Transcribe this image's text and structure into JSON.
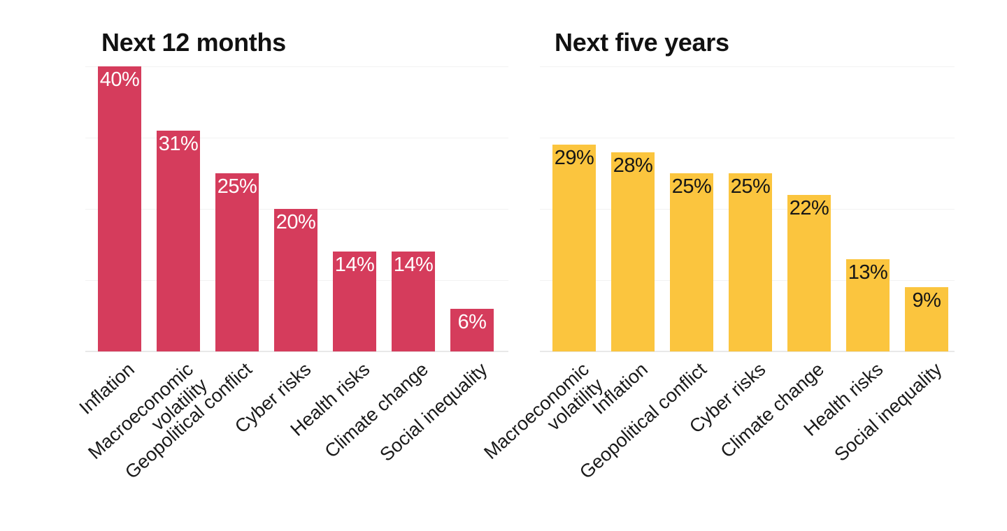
{
  "page": {
    "background": "#ffffff"
  },
  "style": {
    "grid_color": "#f2f2f2",
    "baseline_color": "#e8e8e8",
    "title_color": "#111111",
    "axis_label_color": "#1a1a1a"
  },
  "chart_data": [
    {
      "type": "bar",
      "title": "Next 12 months",
      "categories": [
        "Inflation",
        "Macroeconomic\nvolatility",
        "Geopolitical conflict",
        "Cyber risks",
        "Health risks",
        "Climate change",
        "Social inequality"
      ],
      "values": [
        40,
        31,
        25,
        20,
        14,
        14,
        6
      ],
      "value_suffix": "%",
      "value_labels": [
        "40%",
        "31%",
        "25%",
        "20%",
        "14%",
        "14%",
        "6%"
      ],
      "bar_color": "#d53c5c",
      "value_label_color": "#ffffff",
      "xlabel": "",
      "ylabel": "",
      "ylim": [
        0,
        42
      ],
      "gridline_values": [
        10,
        20,
        30,
        40
      ],
      "grid": "horizontal light gridlines, no tick labels",
      "legend": "none",
      "value_labels_position": "inside-top",
      "x_label_rotation_deg": -42
    },
    {
      "type": "bar",
      "title": "Next five years",
      "categories": [
        "Macroeconomic\nvolatility",
        "Inflation",
        "Geopolitical conflict",
        "Cyber risks",
        "Climate change",
        "Health risks",
        "Social inequality"
      ],
      "values": [
        29,
        28,
        25,
        25,
        22,
        13,
        9
      ],
      "value_suffix": "%",
      "value_labels": [
        "29%",
        "28%",
        "25%",
        "25%",
        "22%",
        "13%",
        "9%"
      ],
      "bar_color": "#fbc53e",
      "value_label_color": "#161616",
      "xlabel": "",
      "ylabel": "",
      "ylim": [
        0,
        42
      ],
      "gridline_values": [
        10,
        20,
        30,
        40
      ],
      "grid": "horizontal light gridlines, no tick labels",
      "legend": "none",
      "value_labels_position": "inside-top",
      "x_label_rotation_deg": -42
    }
  ]
}
